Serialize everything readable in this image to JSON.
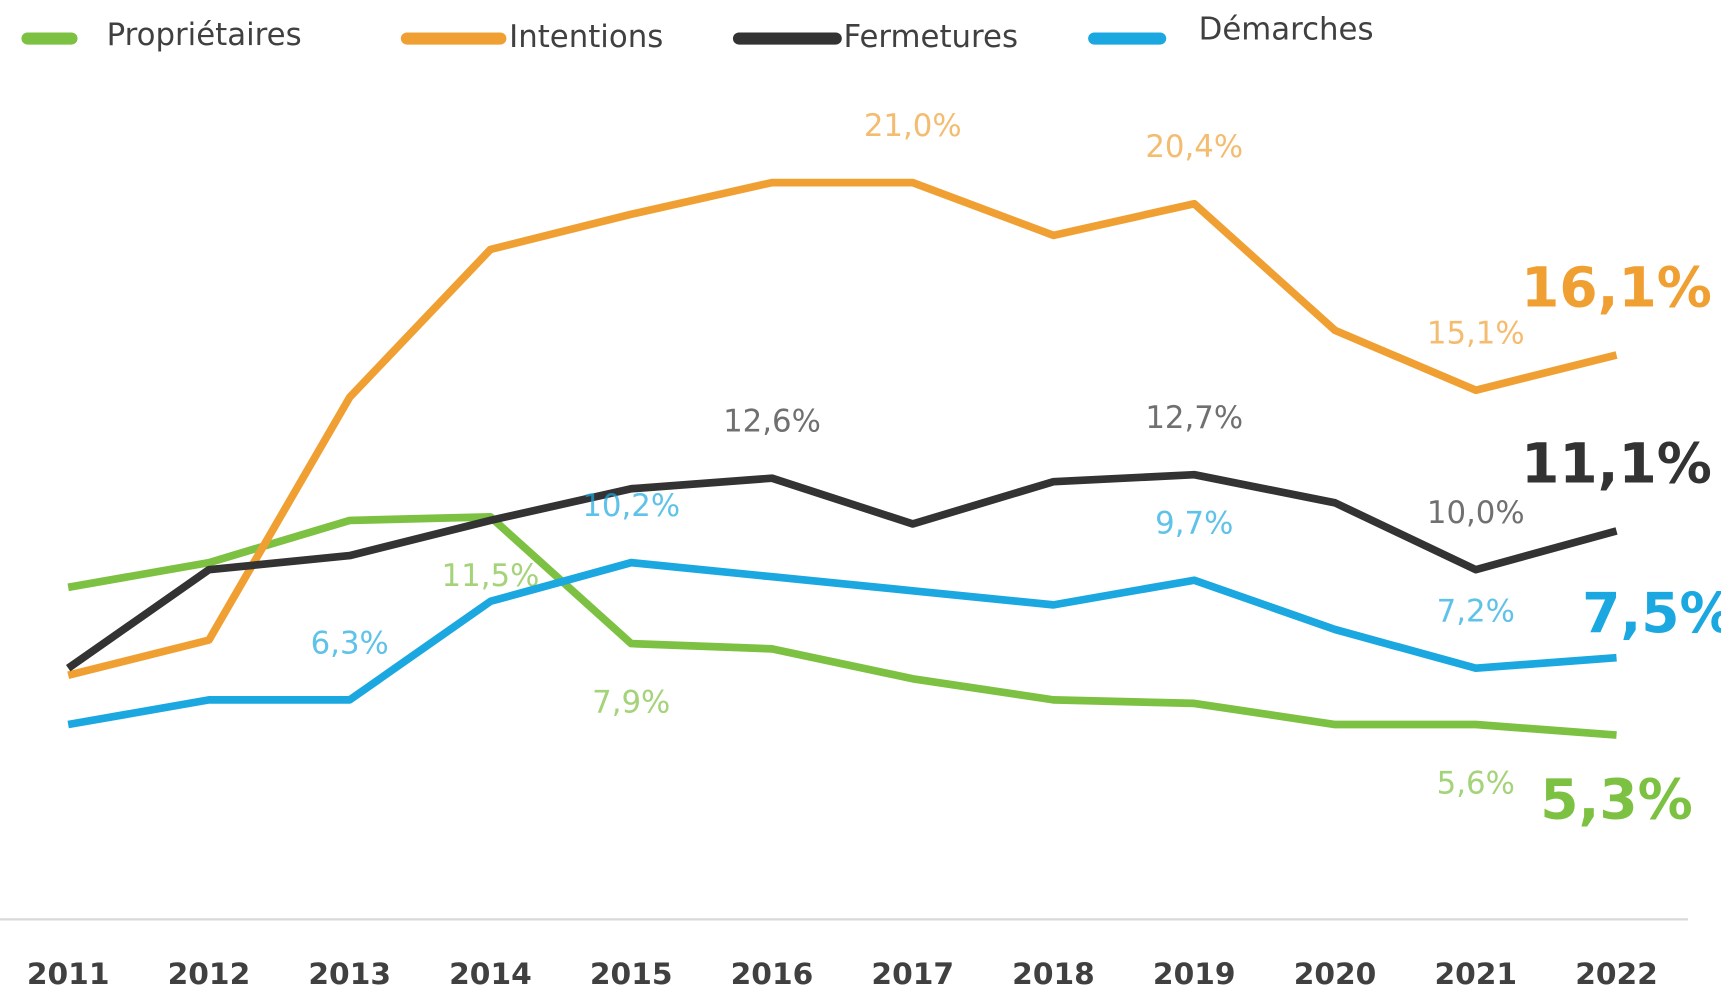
{
  "chart_data": {
    "type": "line",
    "categories": [
      "2011",
      "2012",
      "2013",
      "2014",
      "2015",
      "2016",
      "2017",
      "2018",
      "2019",
      "2020",
      "2021",
      "2022"
    ],
    "ylim": [
      0,
      26
    ],
    "series": [
      {
        "name": "Propriétaires",
        "color": "#7dc142",
        "values": [
          9.5,
          10.2,
          11.4,
          11.5,
          7.9,
          7.75,
          6.9,
          6.3,
          6.2,
          5.6,
          5.6,
          5.3
        ],
        "value_labels": [
          null,
          null,
          null,
          "11,5%",
          "7,9%",
          null,
          null,
          null,
          null,
          null,
          "5,6%",
          "5,3%"
        ]
      },
      {
        "name": "Intentions",
        "color": "#f0a033",
        "values": [
          7.0,
          8.0,
          14.9,
          19.1,
          20.1,
          21.0,
          21.0,
          19.5,
          20.4,
          16.8,
          15.1,
          16.1
        ],
        "value_labels": [
          null,
          null,
          null,
          null,
          null,
          null,
          "21,0%",
          null,
          "20,4%",
          null,
          "15,1%",
          "16,1%"
        ]
      },
      {
        "name": "Fermetures",
        "color": "#333333",
        "values": [
          7.2,
          10.0,
          10.4,
          11.4,
          12.3,
          12.6,
          11.3,
          12.5,
          12.7,
          11.9,
          10.0,
          11.1
        ],
        "value_labels": [
          null,
          null,
          null,
          null,
          null,
          "12,6%",
          null,
          null,
          "12,7%",
          null,
          "10,0%",
          "11,1%"
        ]
      },
      {
        "name": "Démarches",
        "color": "#1ba8e0",
        "values": [
          5.6,
          6.3,
          6.3,
          9.1,
          10.2,
          9.8,
          9.4,
          9.0,
          9.7,
          8.3,
          7.2,
          7.5
        ],
        "value_labels": [
          null,
          null,
          "6,3%",
          null,
          "10,2%",
          null,
          null,
          null,
          "9,7%",
          null,
          "7,2%",
          "7,5%"
        ]
      }
    ]
  }
}
